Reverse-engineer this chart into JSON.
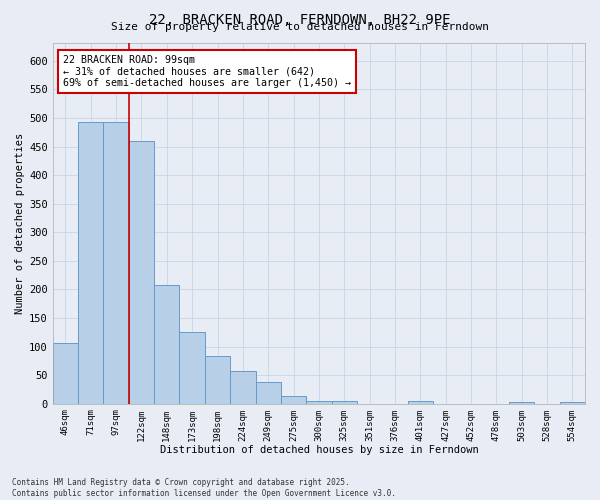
{
  "title": "22, BRACKEN ROAD, FERNDOWN, BH22 9PE",
  "subtitle": "Size of property relative to detached houses in Ferndown",
  "xlabel": "Distribution of detached houses by size in Ferndown",
  "ylabel": "Number of detached properties",
  "categories": [
    "46sqm",
    "71sqm",
    "97sqm",
    "122sqm",
    "148sqm",
    "173sqm",
    "198sqm",
    "224sqm",
    "249sqm",
    "275sqm",
    "300sqm",
    "325sqm",
    "351sqm",
    "376sqm",
    "401sqm",
    "427sqm",
    "452sqm",
    "478sqm",
    "503sqm",
    "528sqm",
    "554sqm"
  ],
  "values": [
    107,
    493,
    493,
    460,
    208,
    125,
    83,
    58,
    38,
    14,
    5,
    5,
    0,
    0,
    5,
    0,
    0,
    0,
    3,
    0,
    3
  ],
  "bar_color": "#b8cfe8",
  "bar_edge_color": "#6699cc",
  "background_color": "#e8edf5",
  "grid_color": "#c8d4e8",
  "annotation_title": "22 BRACKEN ROAD: 99sqm",
  "annotation_line1": "← 31% of detached houses are smaller (642)",
  "annotation_line2": "69% of semi-detached houses are larger (1,450) →",
  "annotation_box_color": "#ffffff",
  "annotation_border_color": "#cc0000",
  "property_line_color": "#cc0000",
  "ylim": [
    0,
    632
  ],
  "yticks": [
    0,
    50,
    100,
    150,
    200,
    250,
    300,
    350,
    400,
    450,
    500,
    550,
    600
  ],
  "footnote1": "Contains HM Land Registry data © Crown copyright and database right 2025.",
  "footnote2": "Contains public sector information licensed under the Open Government Licence v3.0."
}
